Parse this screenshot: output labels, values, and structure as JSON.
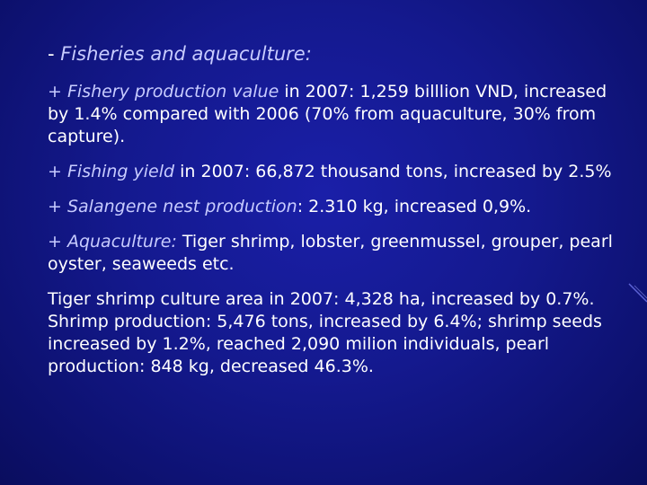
{
  "slide": {
    "heading": {
      "dash": "-",
      "title": "Fisheries and aquaculture:"
    },
    "paragraphs": [
      {
        "lead": "+ Fishery production value",
        "text": " in 2007: 1,259 billlion VND, increased by 1.4% compared with 2006 (70% from aquaculture, 30% from capture)."
      },
      {
        "lead": "+ Fishing yield",
        "text": " in 2007: 66,872 thousand tons, increased by 2.5%"
      },
      {
        "lead": "+ Salangene nest production",
        "text": ": 2.310 kg, increased 0,9%."
      },
      {
        "lead": "+ Aquaculture:",
        "text": " Tiger shrimp, lobster, greenmussel, grouper, pearl oyster, seaweeds etc."
      },
      {
        "lead": "",
        "text": "Tiger shrimp culture area in 2007: 4,328 ha, increased by 0.7%. Shrimp production: 5,476 tons, increased by 6.4%; shrimp seeds increased by 1.2%, reached 2,090 milion individuals, pearl production: 848 kg, decreased 46.3%."
      }
    ]
  }
}
